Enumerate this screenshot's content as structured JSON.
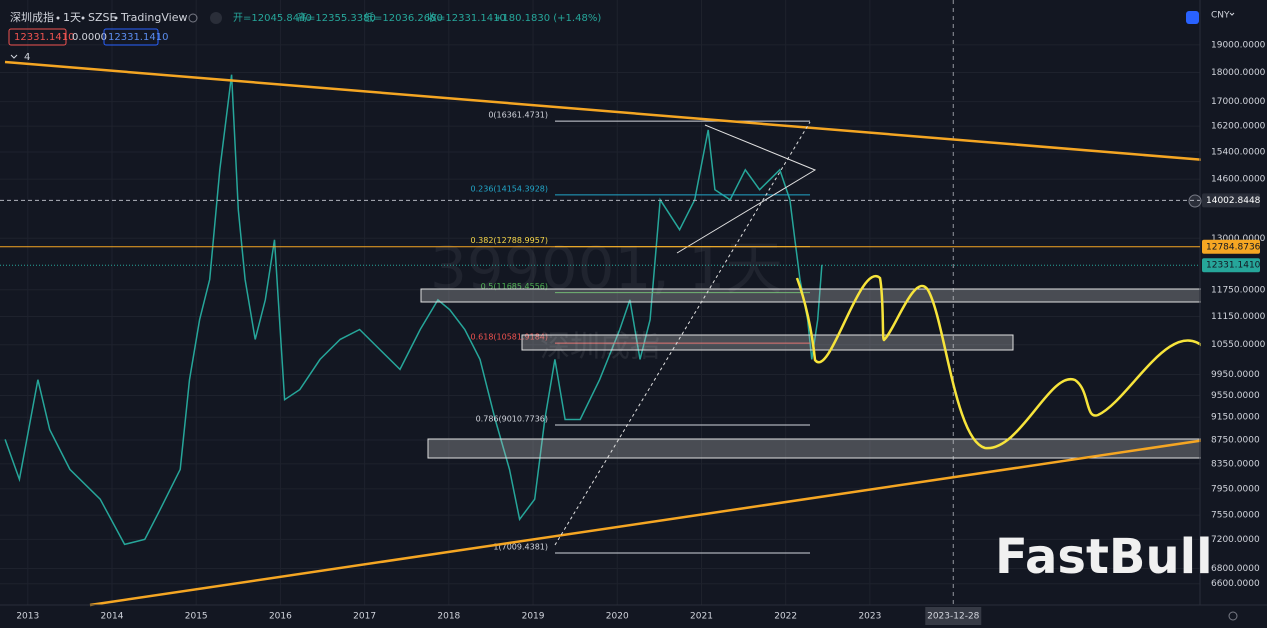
{
  "header": {
    "symbol": "深圳成指",
    "interval": "1天",
    "exchange": "SZSE",
    "platform": "TradingView",
    "ohlc": [
      "开=12045.8440",
      "高=12355.3380",
      "低=12036.2680",
      "收=12331.1410"
    ],
    "change": "+180.1830 (+1.48%)",
    "badges": [
      "12331.1410",
      "0.0000",
      "12331.1410"
    ],
    "indicator_count": "4",
    "currency": "CNY"
  },
  "watermark": {
    "line1": "399001, 1天",
    "line2": "深圳成指"
  },
  "brand": "FastBull",
  "chart": {
    "log_scale": true,
    "ylim": [
      6330,
      20750
    ],
    "yticks": [
      {
        "value": 19000,
        "label": "19000.0000"
      },
      {
        "value": 18000,
        "label": "18000.0000"
      },
      {
        "value": 17000,
        "label": "17000.0000"
      },
      {
        "value": 16200,
        "label": "16200.0000"
      },
      {
        "value": 15400,
        "label": "15400.0000"
      },
      {
        "value": 14600,
        "label": "14600.0000"
      },
      {
        "value": 13000,
        "label": "13000.0000"
      },
      {
        "value": 11750,
        "label": "11750.0000"
      },
      {
        "value": 11150,
        "label": "11150.0000"
      },
      {
        "value": 10550,
        "label": "10550.0000"
      },
      {
        "value": 9950,
        "label": "9950.0000"
      },
      {
        "value": 9550,
        "label": "9550.0000"
      },
      {
        "value": 9150,
        "label": "9150.0000"
      },
      {
        "value": 8750,
        "label": "8750.0000"
      },
      {
        "value": 8350,
        "label": "8350.0000"
      },
      {
        "value": 7950,
        "label": "7950.0000"
      },
      {
        "value": 7550,
        "label": "7550.0000"
      },
      {
        "value": 7200,
        "label": "7200.0000"
      },
      {
        "value": 6800,
        "label": "6800.0000"
      },
      {
        "value": 6600,
        "label": "6600.0000"
      }
    ],
    "xlim": [
      2012.67,
      2026.92
    ],
    "xticks": [
      2013,
      2014,
      2015,
      2016,
      2017,
      2018,
      2019,
      2020,
      2021,
      2022,
      2023
    ],
    "cursor_date": {
      "value": 2023.99,
      "label": "2023-12-28"
    },
    "price": {
      "color": "#26a69a",
      "x": [
        2012.73,
        2012.9,
        2013.12,
        2013.26,
        2013.5,
        2013.86,
        2014.15,
        2014.39,
        2014.57,
        2014.81,
        2014.92,
        2015.04,
        2015.16,
        2015.28,
        2015.42,
        2015.5,
        2015.58,
        2015.7,
        2015.82,
        2015.93,
        2016.05,
        2016.23,
        2016.47,
        2016.71,
        2016.94,
        2017.18,
        2017.42,
        2017.66,
        2017.87,
        2018.01,
        2018.19,
        2018.37,
        2018.55,
        2018.72,
        2018.84,
        2019.02,
        2019.14,
        2019.26,
        2019.38,
        2019.56,
        2019.79,
        2020.03,
        2020.15,
        2020.27,
        2020.39,
        2020.51,
        2020.74,
        2020.92,
        2021.08,
        2021.16,
        2021.34,
        2021.52,
        2021.69,
        2021.93,
        2022.05,
        2022.11,
        2022.17,
        2022.26,
        2022.31,
        2022.38,
        2022.43
      ],
      "close": [
        8760,
        8100,
        9850,
        8930,
        8260,
        7790,
        7130,
        7200,
        7630,
        8260,
        9850,
        11080,
        11990,
        14870,
        17920,
        13750,
        11990,
        10660,
        11520,
        12960,
        9470,
        9660,
        10250,
        10660,
        10870,
        10450,
        10050,
        10870,
        11520,
        11300,
        10870,
        10250,
        9110,
        8260,
        7490,
        7790,
        9110,
        10250,
        9110,
        9110,
        9850,
        10870,
        11520,
        10250,
        11080,
        14020,
        13220,
        14020,
        16080,
        14300,
        14020,
        14870,
        14300,
        14870,
        14020,
        12960,
        11990,
        11080,
        10250,
        11080,
        12340
      ]
    },
    "levels": [
      {
        "value": 14002.8448,
        "color": "#b2b5be",
        "style": "dashed"
      },
      {
        "value": 12784.8736,
        "color": "#f5a623",
        "style": "solid"
      },
      {
        "value": 12331.141,
        "label": "12331.1410",
        "color": "#26a69a",
        "style": "dotted"
      }
    ],
    "fib": [
      {
        "label": "0(16361.4731)",
        "value": 16361.4731,
        "color": "#d1d4dc"
      },
      {
        "label": "0.236(14154.3928)",
        "value": 14154.3928,
        "color": "#22a6c8"
      },
      {
        "label": "0.382(12788.9957)",
        "value": 12788.9957,
        "color": "#f5d547"
      },
      {
        "label": "0.5(11685.4556)",
        "value": 11685.4556,
        "color": "#4caf50"
      },
      {
        "label": "0.618(10581.9184)",
        "value": 10581.9184,
        "color": "#ef5350"
      },
      {
        "label": "0.786(9010.7736)",
        "value": 9010.7736,
        "color": "#d1d4dc"
      },
      {
        "label": "1(7009.4381)",
        "value": 7009.4381,
        "color": "#d1d4dc"
      }
    ]
  }
}
